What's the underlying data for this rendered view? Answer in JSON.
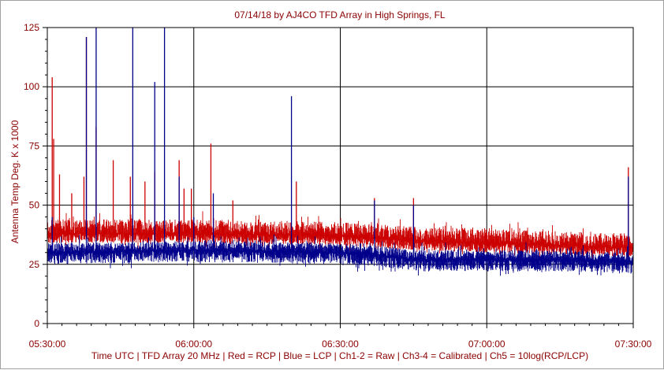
{
  "chart_data": {
    "type": "line",
    "title": "07/14/18  by  AJ4CO TFD Array  in  High Springs, FL",
    "xlabel": "Time UTC | TFD Array 20 MHz | Red = RCP | Blue = LCP | Ch1-2 = Raw | Ch3-4 = Calibrated | Ch5 = 10log(RCP/LCP)",
    "ylabel": "Antenna Temp Deg. K x 1000",
    "ylim": [
      0,
      125
    ],
    "yticks": [
      "0",
      "25",
      "50",
      "75",
      "100",
      "125"
    ],
    "xticks": [
      "05:30:00",
      "06:00:00",
      "06:30:00",
      "07:00:00",
      "07:30:00"
    ],
    "x_range_minutes": [
      0,
      120
    ],
    "grid": true,
    "series": [
      {
        "name": "Red = RCP",
        "color": "#cc0000",
        "baseline": [
          [
            0,
            38
          ],
          [
            30,
            38
          ],
          [
            60,
            37
          ],
          [
            75,
            35
          ],
          [
            90,
            34
          ],
          [
            105,
            33
          ],
          [
            120,
            32
          ]
        ],
        "noise_top": 6,
        "noise_bottom": 4,
        "spikes": [
          [
            1,
            104
          ],
          [
            1.3,
            78
          ],
          [
            2.5,
            63
          ],
          [
            5,
            55
          ],
          [
            7.5,
            62
          ],
          [
            8,
            121
          ],
          [
            10,
            83
          ],
          [
            13.5,
            69
          ],
          [
            17,
            62
          ],
          [
            20,
            60
          ],
          [
            22,
            64
          ],
          [
            27,
            69
          ],
          [
            28,
            57
          ],
          [
            29.5,
            57
          ],
          [
            33.5,
            76
          ],
          [
            38,
            52
          ],
          [
            51,
            60
          ],
          [
            67,
            53
          ],
          [
            75,
            53
          ],
          [
            119,
            66
          ]
        ]
      },
      {
        "name": "Blue = LCP",
        "color": "#00008b",
        "baseline": [
          [
            0,
            30
          ],
          [
            30,
            31
          ],
          [
            60,
            30
          ],
          [
            68,
            29
          ],
          [
            75,
            27
          ],
          [
            90,
            27
          ],
          [
            105,
            27
          ],
          [
            120,
            26
          ]
        ],
        "noise_top": 4,
        "noise_bottom": 5,
        "spikes": [
          [
            1,
            45
          ],
          [
            8,
            121
          ],
          [
            10,
            125
          ],
          [
            17.5,
            125
          ],
          [
            22,
            102
          ],
          [
            24,
            125
          ],
          [
            27,
            62
          ],
          [
            30,
            45
          ],
          [
            34,
            55
          ],
          [
            50,
            96
          ],
          [
            67,
            52
          ],
          [
            75,
            50
          ],
          [
            119,
            62
          ]
        ]
      }
    ]
  }
}
